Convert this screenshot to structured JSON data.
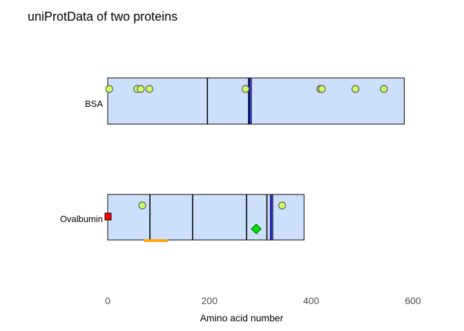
{
  "chart_data": {
    "type": "feature-map",
    "title": "uniProtData of two proteins",
    "xlabel": "Amino acid number",
    "xlim": [
      0,
      600
    ],
    "x_ticks": [
      "0",
      "200",
      "400",
      "600"
    ],
    "grid": false,
    "colors": {
      "protein_fill": "#cce0fc",
      "protein_border": "#000000",
      "domain_line": "#000000",
      "disulfide_line": "#0000cc",
      "site_fill": "#ccff66",
      "site_border": "#5a5a5a",
      "signal_fill": "#ff0000",
      "binding_fill": "#00e000",
      "peptide_color": "#ffa500"
    },
    "proteins": [
      {
        "name": "BSA",
        "length": 583,
        "domain_boundaries": [
          196,
          277
        ],
        "disulfide_bonds": [
          279,
          281
        ],
        "sites": [
          3,
          58,
          65,
          82,
          271,
          418,
          421,
          487,
          543
        ],
        "signal": [],
        "binding": [],
        "peptides": []
      },
      {
        "name": "Ovalbumin",
        "length": 386,
        "domain_boundaries": [
          83,
          167,
          273,
          313
        ],
        "disulfide_bonds": [
          321,
          323
        ],
        "sites": [
          68,
          343
        ],
        "signal": [
          0
        ],
        "binding": [
          292
        ],
        "peptides": [
          [
            72,
            118
          ]
        ]
      }
    ]
  }
}
